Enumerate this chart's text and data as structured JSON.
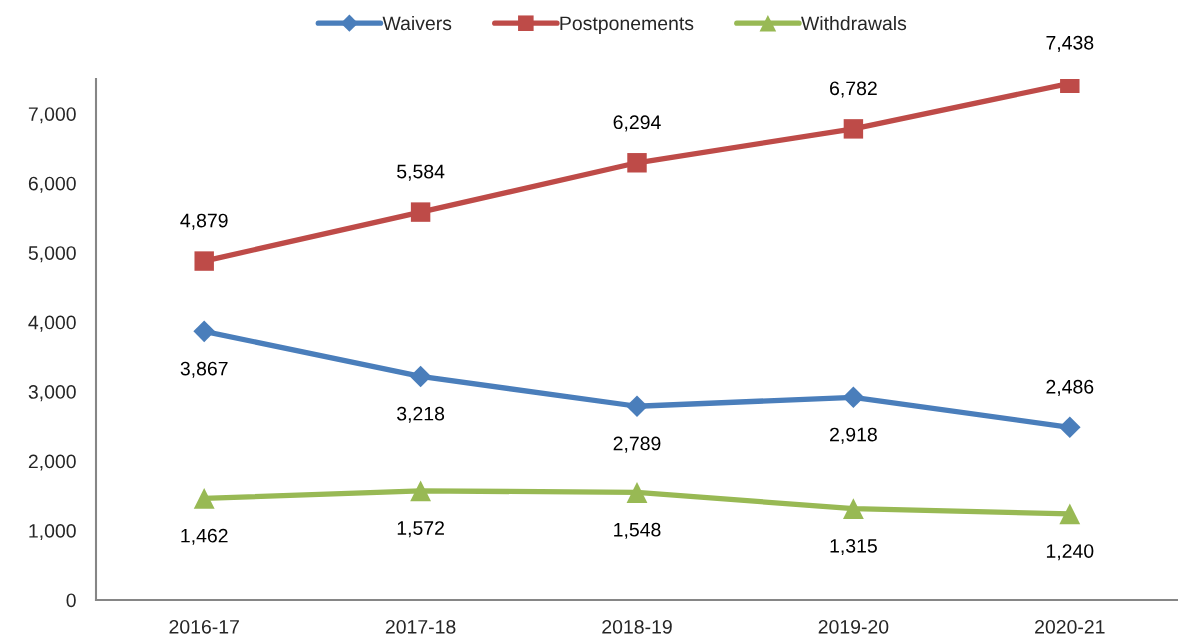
{
  "chart_data": {
    "type": "line",
    "legend": "top",
    "categories": [
      "2016-17",
      "2017-18",
      "2018-19",
      "2019-20",
      "2020-21"
    ],
    "series": [
      {
        "name": "Waivers",
        "color": "#4a7ebb",
        "marker": "diamond",
        "values": [
          3867,
          3218,
          2789,
          2918,
          2486
        ],
        "value_labels": [
          "3,867",
          "3,218",
          "2,789",
          "2,918",
          "2,486"
        ]
      },
      {
        "name": "Postponements",
        "color": "#be4b48",
        "marker": "square",
        "values": [
          4879,
          5584,
          6294,
          6782,
          7438
        ],
        "value_labels": [
          "4,879",
          "5,584",
          "6,294",
          "6,782",
          "7,438"
        ]
      },
      {
        "name": "Withdrawals",
        "color": "#98b954",
        "marker": "triangle",
        "values": [
          1462,
          1572,
          1548,
          1315,
          1240
        ],
        "value_labels": [
          "1,462",
          "1,572",
          "1,548",
          "1,315",
          "1,240"
        ]
      }
    ],
    "ylim": [
      0,
      7500
    ],
    "yticks": [
      0,
      {
        "value": 1000,
        "label": "1,000"
      },
      {
        "value": 2000,
        "label": "2,000"
      },
      {
        "value": 3000,
        "label": "3,000"
      },
      {
        "value": 4000,
        "label": "4,000"
      },
      {
        "value": 5000,
        "label": "5,000"
      },
      {
        "value": 6000,
        "label": "6,000"
      },
      {
        "value": 7000,
        "label": "7,000"
      }
    ]
  }
}
